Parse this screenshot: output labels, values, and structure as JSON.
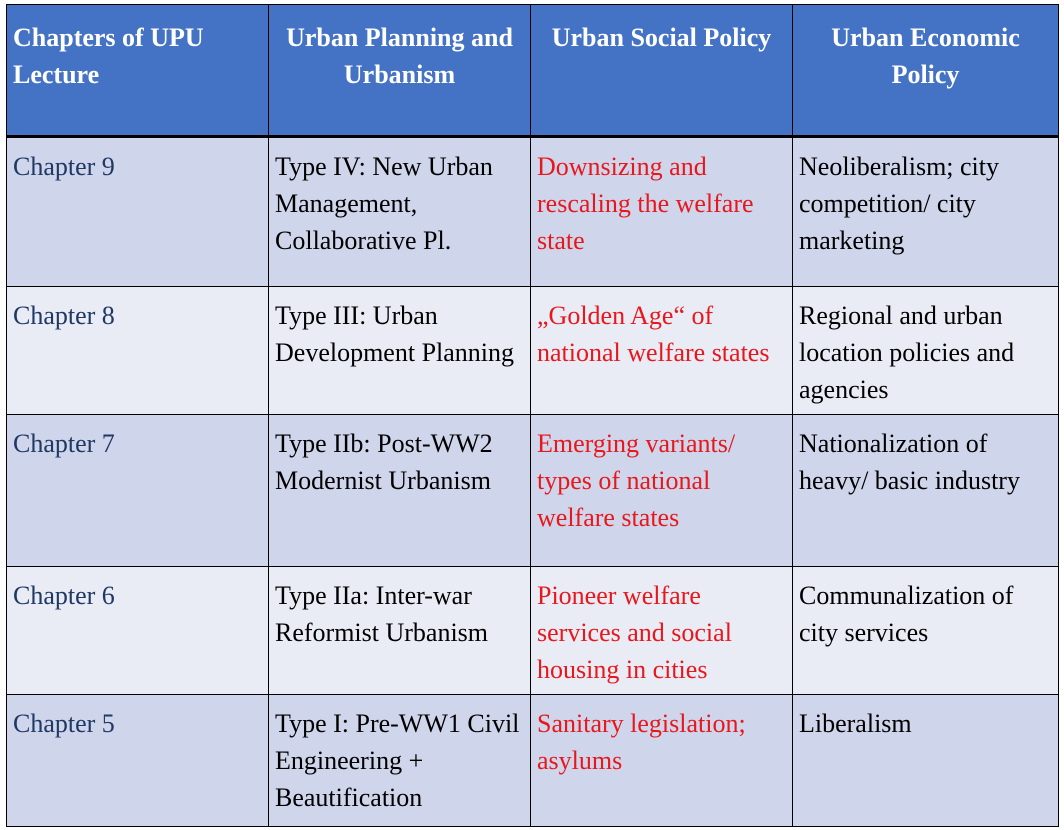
{
  "table": {
    "headers": [
      "Chapters of UPU Lecture",
      "Urban Planning and Urbanism",
      "Urban Social Policy",
      "Urban Economic Policy"
    ],
    "rows": [
      {
        "chapter": "Chapter 9",
        "planning": "Type IV: New Urban Management, Collaborative Pl.",
        "social": "Downsizing and rescaling the welfare state",
        "economic": "Neoliberalism; city competition/ city marketing"
      },
      {
        "chapter": "Chapter 8",
        "planning": "Type III: Urban Development Planning",
        "social": "„Golden Age“ of national welfare states",
        "economic": "Regional and urban location policies and agencies"
      },
      {
        "chapter": "Chapter 7",
        "planning": "Type IIb: Post-WW2 Modernist Urbanism",
        "social": "Emerging variants/ types of national welfare states",
        "economic": "Nationalization of heavy/ basic industry"
      },
      {
        "chapter": "Chapter 6",
        "planning": "Type IIa: Inter-war Reformist Urbanism",
        "social": "Pioneer welfare services and social housing in cities",
        "economic": "Communalization of city services"
      },
      {
        "chapter": "Chapter 5",
        "planning": "Type I: Pre-WW1 Civil Engineering + Beautification",
        "social": "Sanitary legislation; asylums",
        "economic": "Liberalism"
      }
    ]
  },
  "colors": {
    "header_bg": "#4472c4",
    "header_text": "#ffffff",
    "row_light": "#e9ebf5",
    "row_dark": "#cfd5ea",
    "chapter_text": "#1f3864",
    "social_text": "#e8171b"
  }
}
